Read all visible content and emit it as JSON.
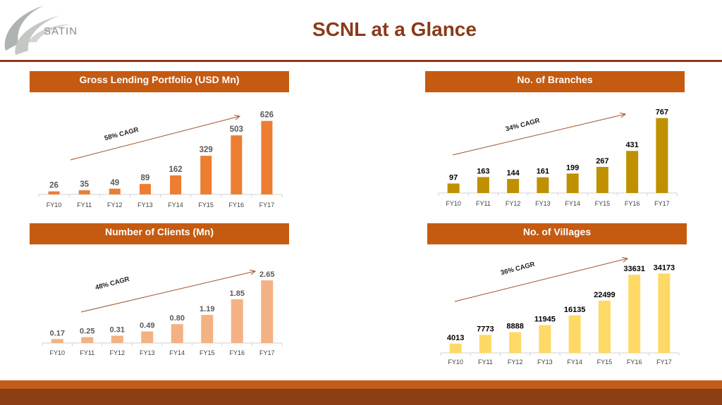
{
  "logo": {
    "text": "SATIN",
    "color": "#b0b4b0"
  },
  "page": {
    "title": "SCNL at a Glance"
  },
  "colors": {
    "accent": "#c55a11",
    "title": "#8b3a1a"
  },
  "chart_data": [
    {
      "type": "bar",
      "title": "Gross Lending Portfolio (USD Mn)",
      "categories": [
        "FY10",
        "FY11",
        "FY12",
        "FY13",
        "FY14",
        "FY15",
        "FY16",
        "FY17"
      ],
      "values": [
        26,
        35,
        49,
        89,
        162,
        329,
        503,
        626
      ],
      "value_labels": [
        "26",
        "35",
        "49",
        "89",
        "162",
        "329",
        "503",
        "626"
      ],
      "annotation": "58% CAGR",
      "ylim": [
        0,
        690
      ],
      "color": "#ed7d31",
      "label_color": "#595959"
    },
    {
      "type": "bar",
      "title": "No. of Branches",
      "categories": [
        "FY10",
        "FY11",
        "FY12",
        "FY13",
        "FY14",
        "FY15",
        "FY16",
        "FY17"
      ],
      "values": [
        97,
        163,
        144,
        161,
        199,
        267,
        431,
        767
      ],
      "value_labels": [
        "97",
        "163",
        "144",
        "161",
        "199",
        "267",
        "431",
        "767"
      ],
      "annotation": "34% CAGR",
      "ylim": [
        0,
        815
      ],
      "color": "#bf9000",
      "label_color": "#000000"
    },
    {
      "type": "bar",
      "title": "Number of Clients (Mn)",
      "categories": [
        "FY10",
        "FY11",
        "FY12",
        "FY13",
        "FY14",
        "FY15",
        "FY16",
        "FY17"
      ],
      "values": [
        0.17,
        0.25,
        0.31,
        0.49,
        0.8,
        1.19,
        1.85,
        2.65
      ],
      "value_labels": [
        "0.17",
        "0.25",
        "0.31",
        "0.49",
        "0.80",
        "1.19",
        "1.85",
        "2.65"
      ],
      "annotation": "48% CAGR",
      "ylim": [
        0,
        2.92
      ],
      "color": "#f4b183",
      "label_color": "#595959"
    },
    {
      "type": "bar",
      "title": "No. of Villages",
      "categories": [
        "FY10",
        "FY11",
        "FY12",
        "FY13",
        "FY14",
        "FY15",
        "FY16",
        "FY17"
      ],
      "values": [
        4013,
        7773,
        8888,
        11945,
        16135,
        22499,
        33631,
        34173
      ],
      "value_labels": [
        "4013",
        "7773",
        "8888",
        "11945",
        "16135",
        "22499",
        "33631",
        "34173"
      ],
      "annotation": "36% CAGR",
      "ylim": [
        0,
        37600
      ],
      "color": "#ffd966",
      "label_color": "#000000"
    }
  ]
}
